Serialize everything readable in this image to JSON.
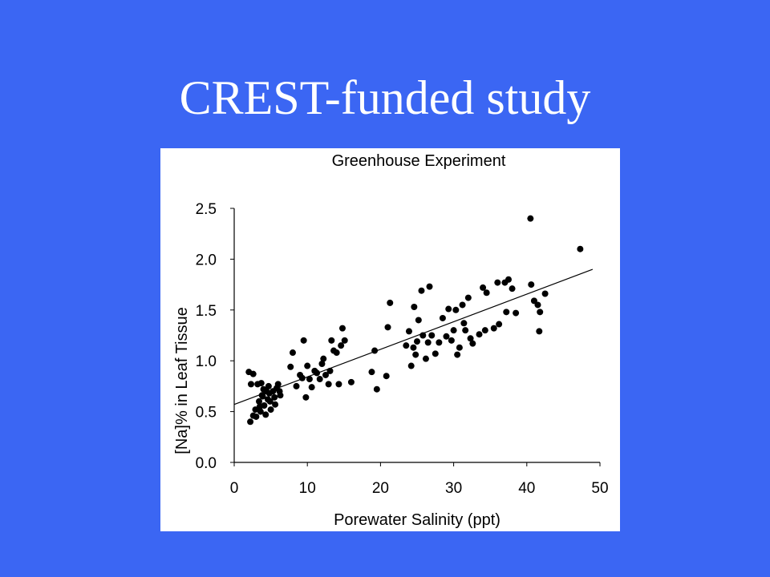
{
  "slide": {
    "title": "CREST-funded study",
    "background": "#3B66F3"
  },
  "chart_data": {
    "type": "scatter",
    "title": "Greenhouse Experiment",
    "xlabel": "Porewater Salinity (ppt)",
    "ylabel": "[Na]% in Leaf Tissue",
    "xlim": [
      0,
      50
    ],
    "ylim": [
      0,
      2.5
    ],
    "xticks": [
      "0",
      "10",
      "20",
      "30",
      "40",
      "50"
    ],
    "yticks": [
      "0.0",
      "0.5",
      "1.0",
      "1.5",
      "2.0",
      "2.5"
    ],
    "grid": false,
    "legend": "none",
    "trendline": {
      "x": [
        0,
        49
      ],
      "y": [
        0.57,
        1.9
      ]
    },
    "points": [
      [
        2,
        0.89
      ],
      [
        2.2,
        0.4
      ],
      [
        2.3,
        0.77
      ],
      [
        2.6,
        0.87
      ],
      [
        2.6,
        0.46
      ],
      [
        2.9,
        0.52
      ],
      [
        3,
        0.45
      ],
      [
        3.2,
        0.77
      ],
      [
        3.4,
        0.6
      ],
      [
        3.6,
        0.5
      ],
      [
        3.7,
        0.78
      ],
      [
        3.8,
        0.66
      ],
      [
        4,
        0.72
      ],
      [
        4.1,
        0.56
      ],
      [
        4.3,
        0.47
      ],
      [
        4.4,
        0.7
      ],
      [
        4.6,
        0.62
      ],
      [
        4.7,
        0.75
      ],
      [
        4.8,
        0.68
      ],
      [
        5,
        0.52
      ],
      [
        5.3,
        0.7
      ],
      [
        5.5,
        0.64
      ],
      [
        5.6,
        0.57
      ],
      [
        5.8,
        0.73
      ],
      [
        6,
        0.77
      ],
      [
        6.2,
        0.7
      ],
      [
        6.3,
        0.66
      ],
      [
        3.9,
        0.65
      ],
      [
        4.9,
        0.6
      ],
      [
        3.5,
        0.55
      ],
      [
        7.7,
        0.94
      ],
      [
        8,
        1.08
      ],
      [
        8.5,
        0.75
      ],
      [
        9,
        0.86
      ],
      [
        9.3,
        0.83
      ],
      [
        9.5,
        1.2
      ],
      [
        9.8,
        0.64
      ],
      [
        10,
        0.95
      ],
      [
        10.3,
        0.82
      ],
      [
        10.6,
        0.74
      ],
      [
        11,
        0.9
      ],
      [
        11.3,
        0.88
      ],
      [
        11.7,
        0.82
      ],
      [
        12,
        0.97
      ],
      [
        12.2,
        1.02
      ],
      [
        12.5,
        0.86
      ],
      [
        12.9,
        0.77
      ],
      [
        13.1,
        0.9
      ],
      [
        13.3,
        1.2
      ],
      [
        13.6,
        1.1
      ],
      [
        14,
        1.08
      ],
      [
        14.3,
        0.77
      ],
      [
        14.6,
        1.15
      ],
      [
        14.8,
        1.32
      ],
      [
        15.1,
        1.2
      ],
      [
        16,
        0.79
      ],
      [
        18.8,
        0.89
      ],
      [
        19.2,
        1.1
      ],
      [
        19.5,
        0.72
      ],
      [
        20.8,
        0.85
      ],
      [
        21,
        1.33
      ],
      [
        21.3,
        1.57
      ],
      [
        23.5,
        1.15
      ],
      [
        23.9,
        1.29
      ],
      [
        24.2,
        0.95
      ],
      [
        24.5,
        1.13
      ],
      [
        24.6,
        1.53
      ],
      [
        24.8,
        1.06
      ],
      [
        25,
        1.19
      ],
      [
        25.2,
        1.4
      ],
      [
        25.6,
        1.69
      ],
      [
        25.8,
        1.25
      ],
      [
        26.2,
        1.02
      ],
      [
        26.5,
        1.18
      ],
      [
        26.7,
        1.73
      ],
      [
        27,
        1.25
      ],
      [
        27.5,
        1.07
      ],
      [
        28,
        1.18
      ],
      [
        28.5,
        1.42
      ],
      [
        29,
        1.24
      ],
      [
        29.3,
        1.51
      ],
      [
        29.7,
        1.2
      ],
      [
        30,
        1.3
      ],
      [
        30.3,
        1.5
      ],
      [
        30.5,
        1.06
      ],
      [
        30.8,
        1.13
      ],
      [
        31.2,
        1.55
      ],
      [
        31.4,
        1.37
      ],
      [
        31.6,
        1.3
      ],
      [
        32,
        1.62
      ],
      [
        32.3,
        1.22
      ],
      [
        32.6,
        1.17
      ],
      [
        33.5,
        1.26
      ],
      [
        34,
        1.72
      ],
      [
        34.3,
        1.3
      ],
      [
        34.5,
        1.67
      ],
      [
        35.5,
        1.32
      ],
      [
        36,
        1.77
      ],
      [
        36.2,
        1.36
      ],
      [
        37,
        1.77
      ],
      [
        37.2,
        1.48
      ],
      [
        37.5,
        1.8
      ],
      [
        38,
        1.71
      ],
      [
        38.5,
        1.47
      ],
      [
        40.5,
        2.4
      ],
      [
        40.6,
        1.75
      ],
      [
        41,
        1.59
      ],
      [
        41.5,
        1.55
      ],
      [
        41.7,
        1.29
      ],
      [
        41.8,
        1.48
      ],
      [
        42.5,
        1.66
      ],
      [
        47.3,
        2.1
      ]
    ]
  }
}
